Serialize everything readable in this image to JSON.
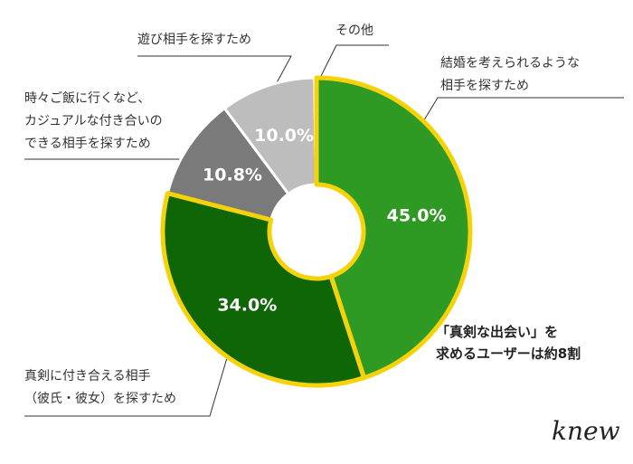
{
  "chart_data": {
    "type": "pie",
    "style": "donut",
    "categories": [
      "結婚を考えられるような相手を探すため",
      "真剣に付き合える相手（彼氏・彼女）を探すため",
      "時々ご飯に行くなど、カジュアルな付き合いのできる相手を探すため",
      "遊び相手を探すため",
      "その他"
    ],
    "values": [
      45.0,
      34.0,
      10.8,
      10.0,
      0.2
    ],
    "value_labels": [
      "45.0%",
      "34.0%",
      "10.8%",
      "10.0%",
      ""
    ],
    "colors": [
      "#2e9a24",
      "#0e6606",
      "#7a7a7a",
      "#bdbdbd",
      "#bdbdbd"
    ],
    "highlight_color": "#f5d20a",
    "highlighted": [
      true,
      true,
      false,
      false,
      false
    ],
    "label_lines": [
      [
        "結婚を考えられるような",
        "相手を探すため"
      ],
      [
        "真剣に付き合える相手",
        "（彼氏・彼女）を探すため"
      ],
      [
        "時々ご飯に行くなど、",
        "カジュアルな付き合いの",
        "できる相手を探すため"
      ],
      [
        "遊び相手を探すため"
      ],
      [
        "その他"
      ]
    ],
    "annotation": [
      "「真剣な出会い」を",
      "求めるユーザーは約8割"
    ]
  },
  "logo": "knew"
}
